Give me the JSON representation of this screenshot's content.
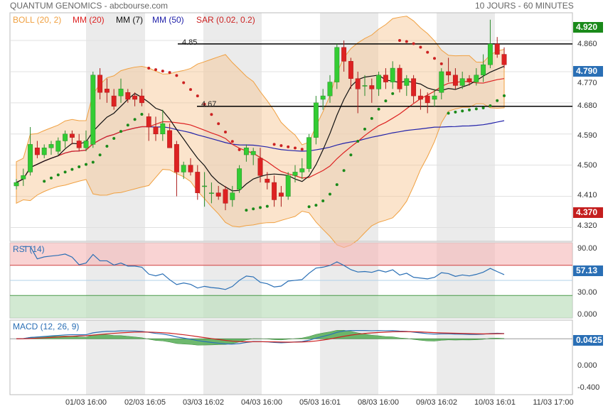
{
  "header": {
    "title": "QUANTUM GENOMICS - abcbourse.com",
    "period": "10 JOURS - 60 MINUTES"
  },
  "legend": {
    "boll": "BOLL (20, 2)",
    "mm20": "MM (20)",
    "mm7": "MM (7)",
    "mm50": "MM (50)",
    "sar": "SAR (0.02, 0.2)",
    "rsi": "RSI (14)",
    "macd": "MACD (12, 26, 9)"
  },
  "colors": {
    "boll": "#f0a040",
    "mm20": "#dd2222",
    "mm7": "#111111",
    "mm50": "#2222aa",
    "sar_up": "#1a8a1a",
    "sar_dn": "#cc2222",
    "up": "#33cc33",
    "down": "#dd2222",
    "rsi": "#2a6fb5",
    "macd": "#2a6fb5",
    "signal": "#cc2222",
    "hist": "#4aa84a"
  },
  "price_axis": {
    "ticks": [
      "4.860",
      "4.770",
      "4.680",
      "4.590",
      "4.500",
      "4.410",
      "4.320"
    ],
    "ticks_values": [
      4.86,
      4.77,
      4.68,
      4.59,
      4.5,
      4.41,
      4.32
    ],
    "ylim": [
      4.28,
      4.94
    ]
  },
  "badges": {
    "high": "4.920",
    "last": "4.790",
    "low": "4.370"
  },
  "levels": {
    "upper": "4.85",
    "lower": "4.67",
    "upper_value": 4.85,
    "lower_value": 4.67
  },
  "rsi_axis": {
    "ticks": [
      "90.00",
      "30.00",
      "0.000"
    ],
    "badge": "57.13"
  },
  "macd_axis": {
    "ticks": [
      "0.000",
      "-0.400"
    ],
    "badge": "0.0425"
  },
  "x_labels": [
    "01/03 16:00",
    "02/03 16:05",
    "03/03 16:02",
    "04/03 16:00",
    "05/03 16:01",
    "08/03 16:00",
    "09/03 16:02",
    "10/03 16:01",
    "11/03 17:00"
  ],
  "chart_data": {
    "type": "candlestick",
    "title": "QUANTUM GENOMICS",
    "ohlc": [
      [
        4.44,
        4.46,
        4.43,
        4.45
      ],
      [
        4.46,
        4.49,
        4.44,
        4.47
      ],
      [
        4.48,
        4.61,
        4.47,
        4.56
      ],
      [
        4.55,
        4.57,
        4.52,
        4.53
      ],
      [
        4.53,
        4.56,
        4.52,
        4.55
      ],
      [
        4.55,
        4.57,
        4.53,
        4.56
      ],
      [
        4.54,
        4.58,
        4.53,
        4.57
      ],
      [
        4.57,
        4.6,
        4.55,
        4.59
      ],
      [
        4.59,
        4.6,
        4.56,
        4.58
      ],
      [
        4.57,
        4.59,
        4.54,
        4.55
      ],
      [
        4.55,
        4.6,
        4.54,
        4.57
      ],
      [
        4.56,
        4.77,
        4.55,
        4.76
      ],
      [
        4.76,
        4.78,
        4.69,
        4.71
      ],
      [
        4.72,
        4.75,
        4.68,
        4.71
      ],
      [
        4.7,
        4.72,
        4.66,
        4.67
      ],
      [
        4.7,
        4.75,
        4.68,
        4.72
      ],
      [
        4.71,
        4.72,
        4.68,
        4.69
      ],
      [
        4.7,
        4.71,
        4.67,
        4.69
      ],
      [
        4.7,
        4.72,
        4.67,
        4.68
      ],
      [
        4.64,
        4.65,
        4.57,
        4.61
      ],
      [
        4.61,
        4.64,
        4.57,
        4.59
      ],
      [
        4.59,
        4.66,
        4.57,
        4.62
      ],
      [
        4.6,
        4.62,
        4.55,
        4.55
      ],
      [
        4.56,
        4.57,
        4.41,
        4.48
      ],
      [
        4.48,
        4.51,
        4.46,
        4.5
      ],
      [
        4.5,
        4.52,
        4.47,
        4.48
      ],
      [
        4.48,
        4.5,
        4.4,
        4.42
      ],
      [
        4.44,
        4.48,
        4.38,
        4.44
      ],
      [
        4.42,
        4.45,
        4.39,
        4.42
      ],
      [
        4.42,
        4.44,
        4.4,
        4.41
      ],
      [
        4.43,
        4.44,
        4.37,
        4.39
      ],
      [
        4.4,
        4.44,
        4.38,
        4.42
      ],
      [
        4.43,
        4.5,
        4.42,
        4.49
      ],
      [
        4.53,
        4.56,
        4.51,
        4.55
      ],
      [
        4.53,
        4.55,
        4.5,
        4.54
      ],
      [
        4.52,
        4.55,
        4.45,
        4.47
      ],
      [
        4.46,
        4.48,
        4.43,
        4.45
      ],
      [
        4.45,
        4.47,
        4.38,
        4.4
      ],
      [
        4.42,
        4.44,
        4.38,
        4.41
      ],
      [
        4.41,
        4.48,
        4.4,
        4.47
      ],
      [
        4.47,
        4.5,
        4.45,
        4.48
      ],
      [
        4.48,
        4.52,
        4.46,
        4.49
      ],
      [
        4.49,
        4.59,
        4.48,
        4.58
      ],
      [
        4.58,
        4.7,
        4.56,
        4.68
      ],
      [
        4.69,
        4.72,
        4.66,
        4.7
      ],
      [
        4.7,
        4.76,
        4.68,
        4.74
      ],
      [
        4.74,
        4.85,
        4.72,
        4.84
      ],
      [
        4.84,
        4.86,
        4.77,
        4.8
      ],
      [
        4.8,
        4.81,
        4.72,
        4.75
      ],
      [
        4.75,
        4.77,
        4.65,
        4.72
      ],
      [
        4.73,
        4.76,
        4.7,
        4.73
      ],
      [
        4.73,
        4.75,
        4.68,
        4.72
      ],
      [
        4.72,
        4.77,
        4.7,
        4.76
      ],
      [
        4.76,
        4.78,
        4.72,
        4.74
      ],
      [
        4.74,
        4.8,
        4.72,
        4.78
      ],
      [
        4.78,
        4.79,
        4.71,
        4.72
      ],
      [
        4.73,
        4.76,
        4.7,
        4.75
      ],
      [
        4.75,
        4.76,
        4.68,
        4.7
      ],
      [
        4.7,
        4.72,
        4.66,
        4.69
      ],
      [
        4.7,
        4.71,
        4.65,
        4.68
      ],
      [
        4.69,
        4.72,
        4.67,
        4.7
      ],
      [
        4.71,
        4.78,
        4.69,
        4.77
      ],
      [
        4.77,
        4.81,
        4.74,
        4.76
      ],
      [
        4.76,
        4.78,
        4.72,
        4.73
      ],
      [
        4.73,
        4.77,
        4.72,
        4.75
      ],
      [
        4.75,
        4.76,
        4.73,
        4.74
      ],
      [
        4.74,
        4.78,
        4.73,
        4.76
      ],
      [
        4.76,
        4.82,
        4.74,
        4.79
      ],
      [
        4.79,
        4.92,
        4.78,
        4.85
      ],
      [
        4.85,
        4.87,
        4.81,
        4.82
      ],
      [
        4.82,
        4.84,
        4.78,
        4.79
      ]
    ],
    "rsi_range": [
      0,
      100
    ],
    "macd_range": [
      -0.45,
      0.15
    ]
  }
}
